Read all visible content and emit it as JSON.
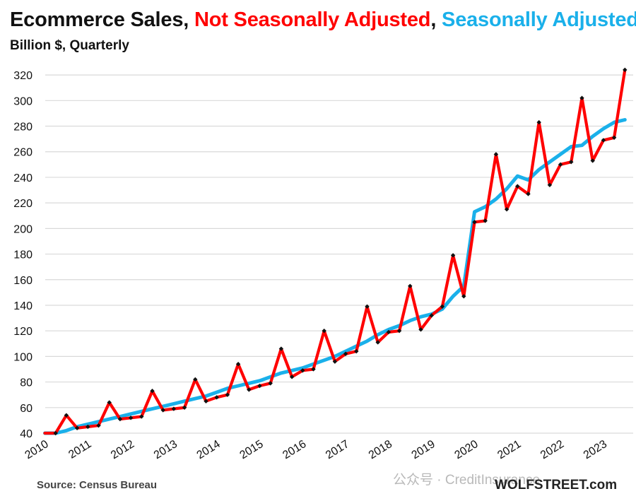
{
  "chart_data": {
    "type": "line",
    "title_parts": [
      {
        "text": "Ecommerce Sales, ",
        "color": "#111111"
      },
      {
        "text": "Not Seasonally Adjusted",
        "color": "#ff0000"
      },
      {
        "text": ", ",
        "color": "#111111"
      },
      {
        "text": "Seasonally Adjusted",
        "color": "#1ab0ea"
      }
    ],
    "subtitle": "Billion $, Quarterly",
    "xlabel": "",
    "ylabel": "",
    "ylim": [
      40,
      330
    ],
    "y_ticks": [
      40,
      60,
      80,
      100,
      120,
      140,
      160,
      180,
      200,
      220,
      240,
      260,
      280,
      300,
      320
    ],
    "x_tick_labels": [
      "2010",
      "2011",
      "2012",
      "2013",
      "2014",
      "2015",
      "2016",
      "2017",
      "2018",
      "2019",
      "2020",
      "2021",
      "2022",
      "2023"
    ],
    "grid": "horizontal",
    "quarters_per_year": 4,
    "series": [
      {
        "name": "Not Seasonally Adjusted",
        "color": "#ff0000",
        "markers": true,
        "values": [
          37,
          40,
          54,
          44,
          45,
          46,
          64,
          51,
          52,
          53,
          73,
          58,
          59,
          60,
          82,
          65,
          68,
          70,
          94,
          74,
          77,
          79,
          106,
          84,
          89,
          90,
          120,
          96,
          102,
          104,
          139,
          111,
          119,
          120,
          155,
          121,
          132,
          139,
          179,
          147,
          205,
          206,
          258,
          215,
          233,
          227,
          283,
          234,
          250,
          252,
          302,
          253,
          269,
          271,
          324
        ]
      },
      {
        "name": "Seasonally Adjusted",
        "color": "#1ab0ea",
        "markers": false,
        "values": [
          38,
          39,
          42,
          45,
          47,
          49,
          51,
          53,
          55,
          57,
          59,
          61,
          63,
          65,
          67,
          69,
          72,
          75,
          77,
          79,
          81,
          84,
          87,
          89,
          91,
          94,
          97,
          100,
          104,
          108,
          112,
          117,
          121,
          124,
          128,
          131,
          133,
          137,
          147,
          155,
          213,
          217,
          223,
          231,
          241,
          238,
          246,
          252,
          258,
          264,
          265,
          272,
          278,
          283,
          285
        ]
      }
    ]
  },
  "source": "Source: Census Bureau",
  "watermark": "公众号 · CreditInsurance",
  "brand": "WOLFSTREET.com"
}
